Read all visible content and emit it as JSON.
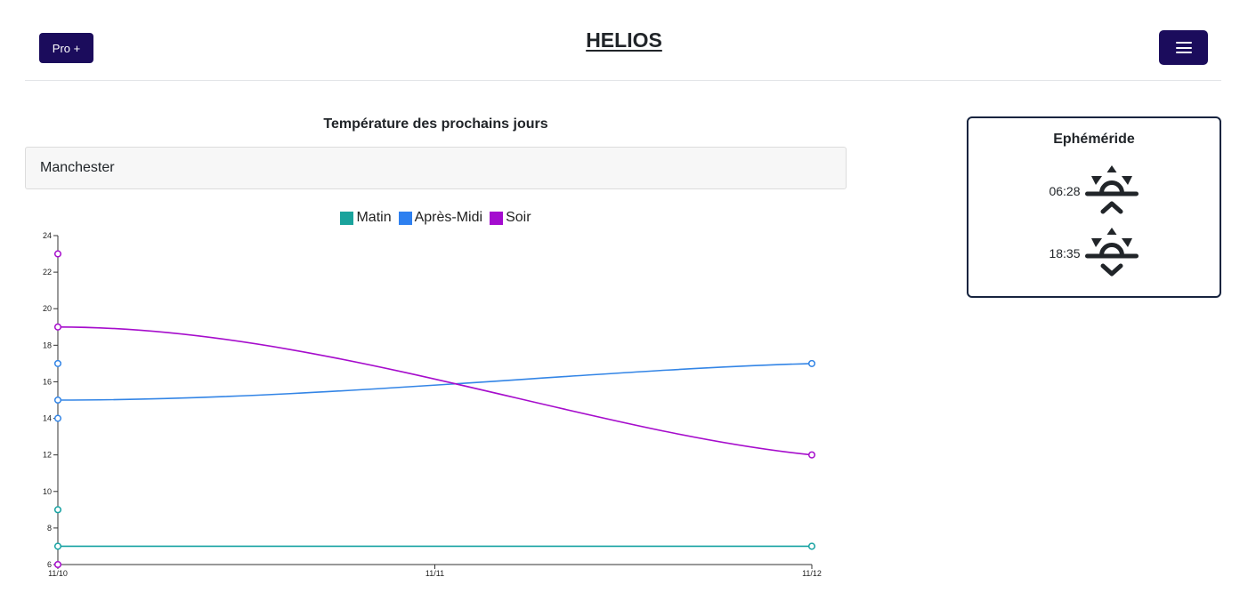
{
  "header": {
    "pro_label": "Pro +",
    "brand": "HELIOS",
    "menu_icon": "hamburger-icon"
  },
  "forecast": {
    "title": "Température des prochains jours",
    "city_value": "Manchester"
  },
  "chart_data": {
    "type": "line",
    "x": [
      "11/10",
      "11/11",
      "11/12"
    ],
    "ylim": [
      6,
      24
    ],
    "yticks": [
      6,
      8,
      10,
      12,
      14,
      16,
      18,
      20,
      22,
      24
    ],
    "legend_position": "top-center",
    "grid": false,
    "series": [
      {
        "name": "Matin",
        "color": "#17a2a2",
        "swatch": "#1aa39c",
        "curve_points": [
          [
            "11/10",
            7
          ],
          [
            "11/12",
            7
          ]
        ],
        "markers": [
          [
            "11/10",
            9
          ],
          [
            "11/10",
            7
          ],
          [
            "11/12",
            7
          ]
        ]
      },
      {
        "name": "Après-Midi",
        "color": "#3385e6",
        "swatch": "#2e80f0",
        "curve_points": [
          [
            "11/10",
            15
          ],
          [
            "11/12",
            17
          ]
        ],
        "markers": [
          [
            "11/10",
            17
          ],
          [
            "11/10",
            15
          ],
          [
            "11/10",
            14
          ],
          [
            "11/12",
            17
          ]
        ]
      },
      {
        "name": "Soir",
        "color": "#a60dcc",
        "swatch": "#a40ccf",
        "curve_points": [
          [
            "11/10",
            19
          ],
          [
            "11/12",
            12
          ]
        ],
        "markers": [
          [
            "11/10",
            23
          ],
          [
            "11/10",
            19
          ],
          [
            "11/10",
            6
          ],
          [
            "11/12",
            12
          ]
        ]
      }
    ]
  },
  "ephemeride": {
    "title": "Ephéméride",
    "sunrise_time": "06:28",
    "sunrise_icon": "sunrise-icon",
    "sunset_time": "18:35",
    "sunset_icon": "sunset-icon"
  }
}
